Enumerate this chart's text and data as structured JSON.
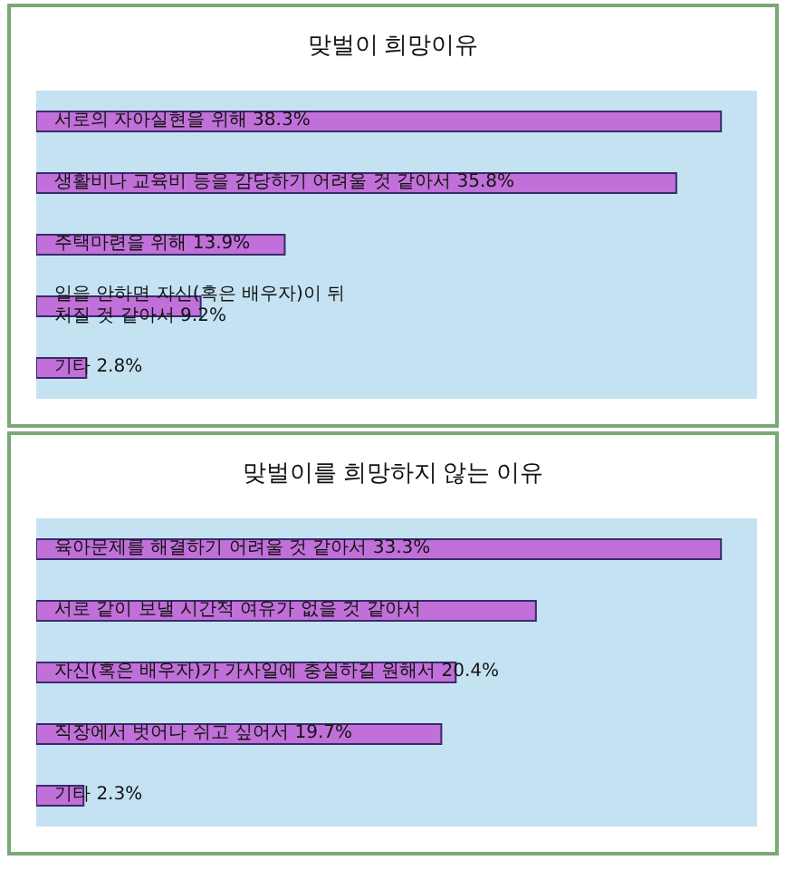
{
  "chart_data": [
    {
      "type": "bar",
      "orientation": "horizontal",
      "title": "맞벌이 희망이유",
      "categories": [
        "서로의 자아실현을 위해",
        "생활비나 교육비 등을 감당하기 어려울 것 같아서",
        "주택마련을 위해",
        "일을 안하면 자신(혹은 배우자)이 뒤처질 것 같아서",
        "기타"
      ],
      "values": [
        38.3,
        35.8,
        13.9,
        9.2,
        2.8
      ],
      "value_labels": [
        "38.3%",
        "35.8%",
        "13.9%",
        "9.2%",
        "2.8%"
      ],
      "color": "#c070d8",
      "tick_labels": false
    },
    {
      "type": "bar",
      "orientation": "horizontal",
      "title": "맞벌이를 희망하지 않는 이유",
      "categories": [
        "육아문제를 해결하기 어려울 것 같아서",
        "서로 같이 보낼 시간적 여유가 없을 것 같아서",
        "자신(혹은 배우자)가 가사일에 충실하길 원해서",
        "직장에서 벗어나 쉬고 싶어서",
        "기타"
      ],
      "values": [
        33.3,
        24.3,
        20.4,
        19.7,
        2.3
      ],
      "value_labels": [
        "33.3%",
        null,
        "20.4%",
        "19.7%",
        "2.3%"
      ],
      "color": "#c070d8",
      "tick_labels": false
    }
  ]
}
